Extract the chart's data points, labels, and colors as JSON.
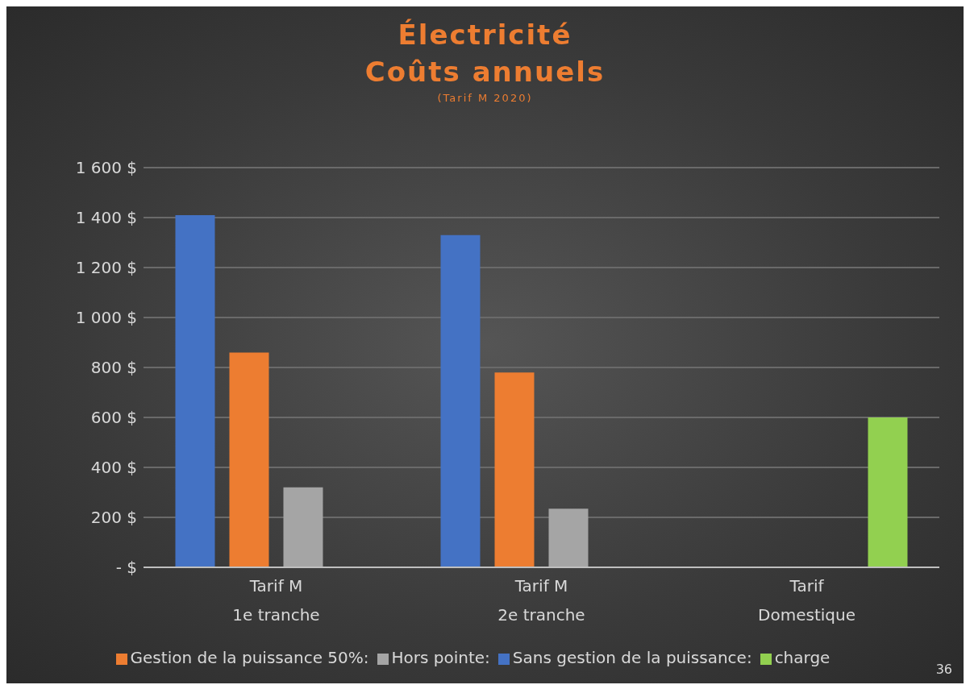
{
  "chart_data": {
    "type": "bar",
    "title": "Électricité\nCoûts annuels",
    "subtitle": "(Tarif M 2020)",
    "categories": [
      "Tarif M\n1e tranche",
      "Tarif M\n2e tranche",
      "Tarif\nDomestique"
    ],
    "series": [
      {
        "name": "Sans gestion de la puissance:",
        "color": "#4472c4",
        "values": [
          1410,
          1330,
          null
        ]
      },
      {
        "name": "Gestion de la puissance 50%:",
        "color": "#ed7d31",
        "values": [
          860,
          780,
          null
        ]
      },
      {
        "name": "Hors pointe:",
        "color": "#a5a5a5",
        "values": [
          320,
          235,
          null
        ]
      },
      {
        "name": "charge",
        "color": "#92d050",
        "values": [
          null,
          null,
          600
        ]
      }
    ],
    "ylim": [
      0,
      1600
    ],
    "yticks": [
      {
        "value": 0,
        "label": "-   $"
      },
      {
        "value": 200,
        "label": "200 $"
      },
      {
        "value": 400,
        "label": "400 $"
      },
      {
        "value": 600,
        "label": "600 $"
      },
      {
        "value": 800,
        "label": "800 $"
      },
      {
        "value": 1000,
        "label": "1 000 $"
      },
      {
        "value": 1200,
        "label": "1 200 $"
      },
      {
        "value": 1400,
        "label": "1 400 $"
      },
      {
        "value": 1600,
        "label": "1 600 $"
      }
    ],
    "grid": "y",
    "legend": "bottom",
    "annotations": [
      "36"
    ]
  }
}
